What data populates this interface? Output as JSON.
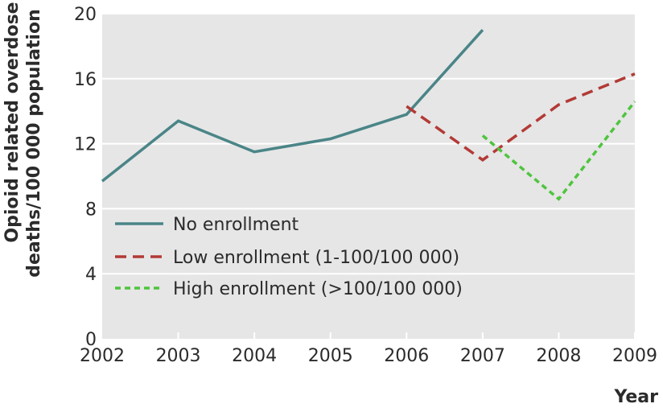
{
  "chart_data": {
    "type": "line",
    "title": "",
    "xlabel": "Year",
    "ylabel_line1": "Opioid related overdose",
    "ylabel_line2": "deaths/100 000 population",
    "x": [
      2002,
      2003,
      2004,
      2005,
      2006,
      2007,
      2008,
      2009
    ],
    "xlim": [
      2002,
      2009
    ],
    "ylim": [
      0,
      20
    ],
    "yticks": [
      0,
      4,
      8,
      12,
      16,
      20
    ],
    "grid": true,
    "legend_position": "bottom-left",
    "series": [
      {
        "name": "No enrollment",
        "style": "solid",
        "color": "#4a8587",
        "points": [
          [
            2002,
            9.7
          ],
          [
            2003,
            13.4
          ],
          [
            2004,
            11.5
          ],
          [
            2005,
            12.3
          ],
          [
            2006,
            13.8
          ],
          [
            2007,
            19.0
          ]
        ]
      },
      {
        "name": "Low enrollment (1-100/100 000)",
        "style": "dashed",
        "color": "#b23a36",
        "points": [
          [
            2006,
            14.3
          ],
          [
            2007,
            11.0
          ],
          [
            2008,
            14.4
          ],
          [
            2009,
            16.3
          ]
        ]
      },
      {
        "name": "High enrollment (>100/100 000)",
        "style": "dotted",
        "color": "#4fc43f",
        "points": [
          [
            2007,
            12.5
          ],
          [
            2008,
            8.6
          ],
          [
            2009,
            14.6
          ]
        ]
      }
    ]
  }
}
